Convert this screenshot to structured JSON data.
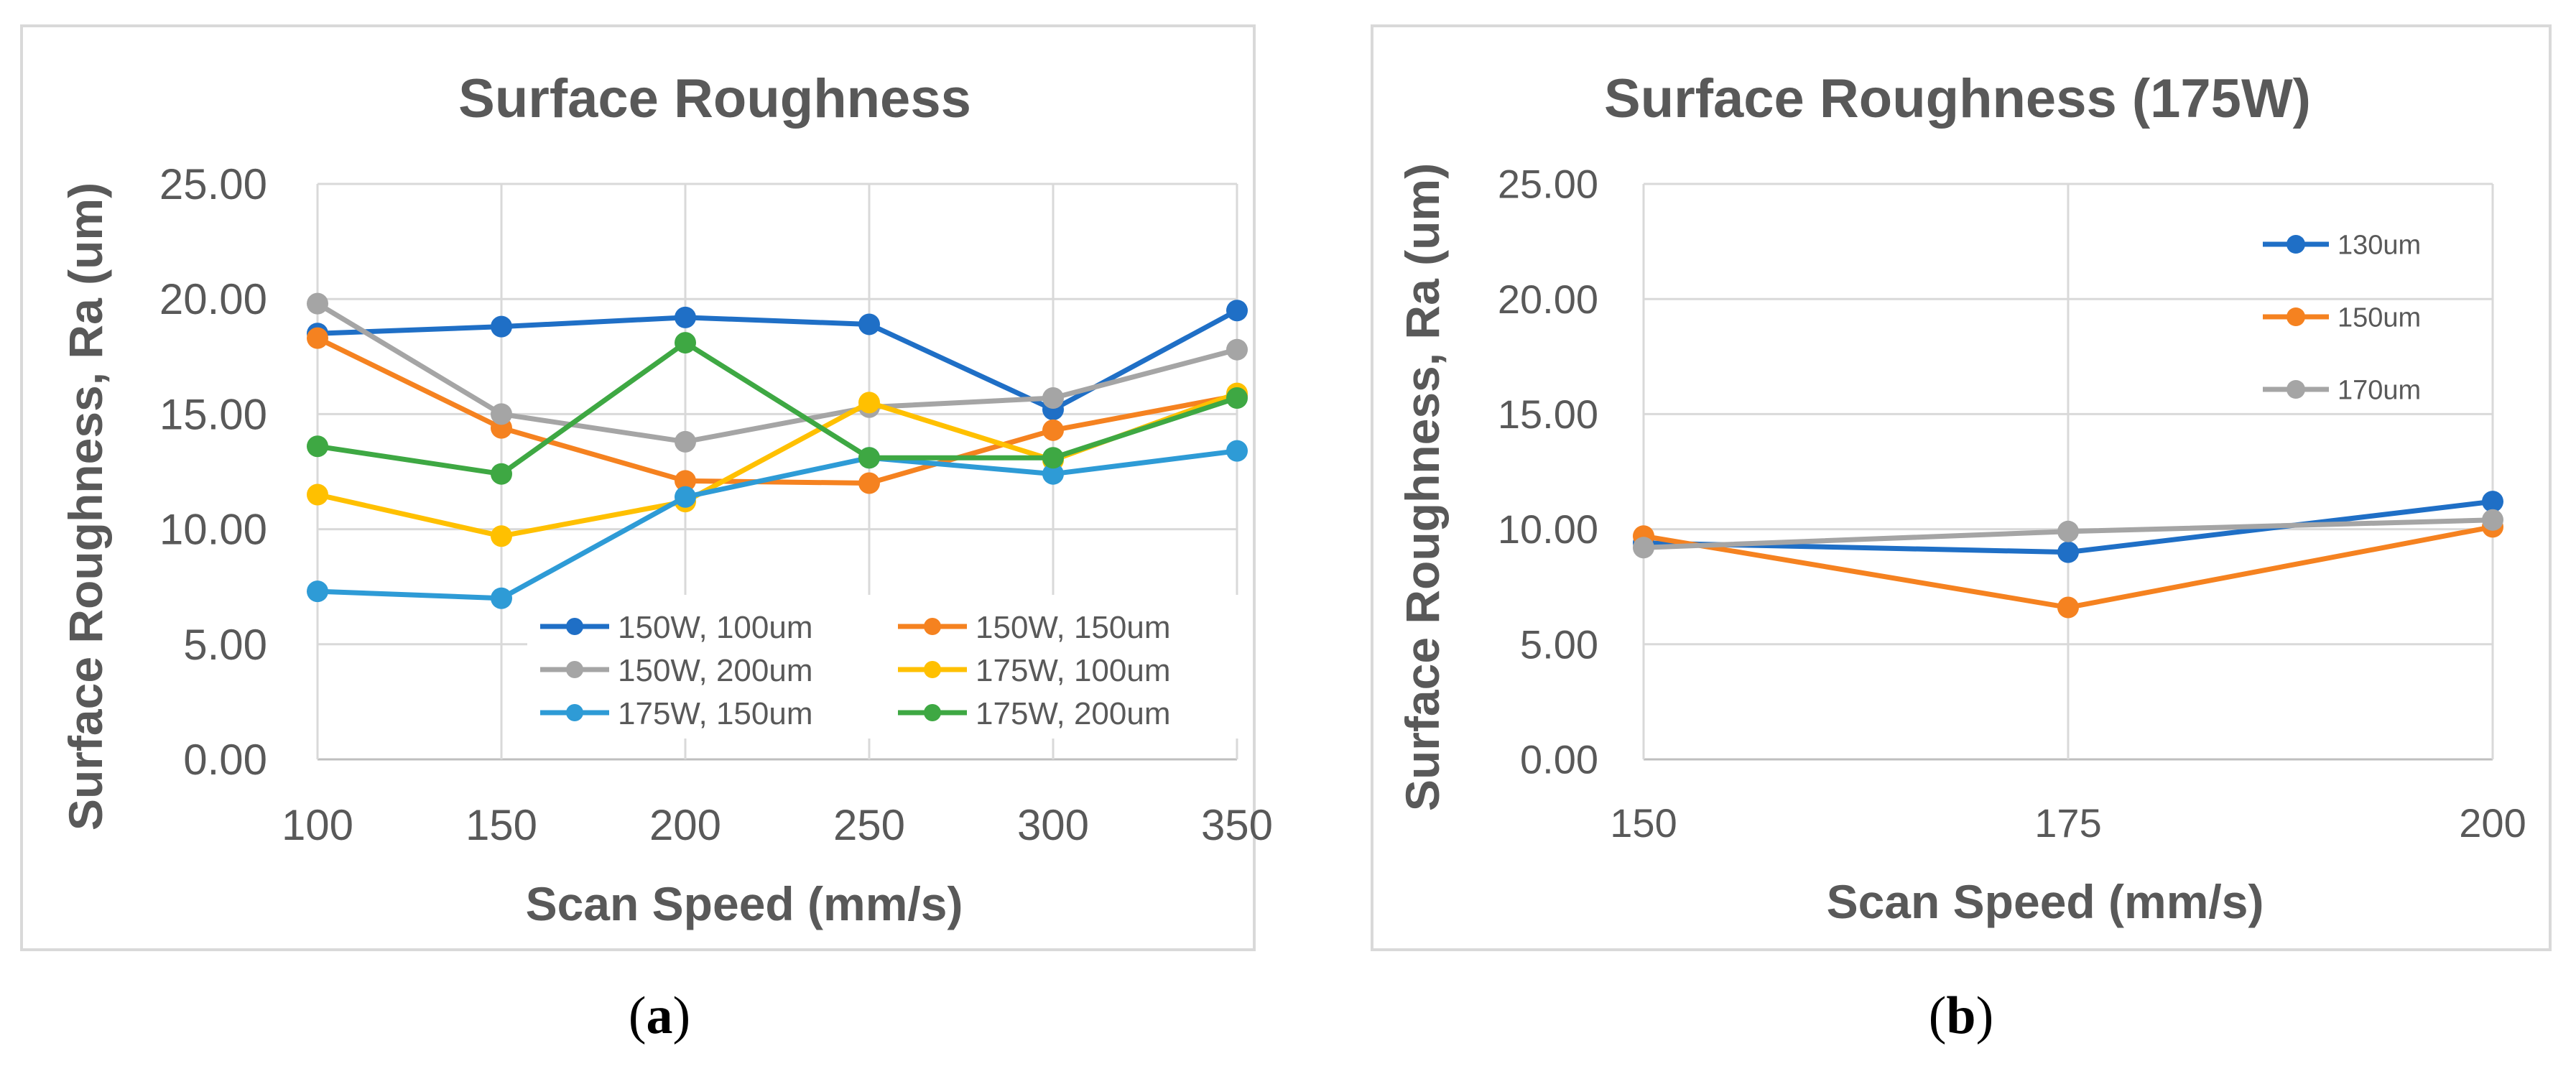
{
  "chart_data": [
    {
      "type": "line",
      "title": "Surface Roughness",
      "xlabel": "Scan Speed (mm/s)",
      "ylabel": "Surface Roughness, Ra (um)",
      "x": [
        100,
        150,
        200,
        250,
        300,
        350
      ],
      "xlim": [
        100,
        350
      ],
      "ylim": [
        0,
        25
      ],
      "yticks": [
        "0.00",
        "5.00",
        "10.00",
        "15.00",
        "20.00",
        "25.00"
      ],
      "xticks": [
        "100",
        "150",
        "200",
        "250",
        "300",
        "350"
      ],
      "grid": true,
      "legend_position": "bottom-right, inside plot",
      "series": [
        {
          "name": "150W, 100um",
          "color": "#1F6FC6",
          "values": [
            18.5,
            18.8,
            19.2,
            18.9,
            15.2,
            19.5
          ]
        },
        {
          "name": "150W, 150um",
          "color": "#F58220",
          "values": [
            18.3,
            14.4,
            12.1,
            12.0,
            14.3,
            15.8
          ]
        },
        {
          "name": "150W, 200um",
          "color": "#A5A5A5",
          "values": [
            19.8,
            15.0,
            13.8,
            15.3,
            15.7,
            17.8
          ]
        },
        {
          "name": "175W, 100um",
          "color": "#FFC000",
          "values": [
            11.5,
            9.7,
            11.2,
            15.5,
            13.0,
            15.9
          ]
        },
        {
          "name": "175W, 150um",
          "color": "#2E9BD6",
          "values": [
            7.3,
            7.0,
            11.4,
            13.1,
            12.4,
            13.4
          ]
        },
        {
          "name": "175W, 200um",
          "color": "#3EA843",
          "values": [
            13.6,
            12.4,
            18.1,
            13.1,
            13.1,
            15.7
          ]
        }
      ]
    },
    {
      "type": "line",
      "title": "Surface Roughness (175W)",
      "xlabel": "Scan Speed (mm/s)",
      "ylabel": "Surface Roughness, Ra (um)",
      "x": [
        150,
        175,
        200
      ],
      "xlim": [
        150,
        200
      ],
      "ylim": [
        0,
        25
      ],
      "yticks": [
        "0.00",
        "5.00",
        "10.00",
        "15.00",
        "20.00",
        "25.00"
      ],
      "xticks": [
        "150",
        "175",
        "200"
      ],
      "grid": true,
      "legend_position": "top-right, inside plot",
      "series": [
        {
          "name": "130um",
          "color": "#1F6FC6",
          "values": [
            9.4,
            9.0,
            11.2
          ]
        },
        {
          "name": "150um",
          "color": "#F58220",
          "values": [
            9.7,
            6.6,
            10.1
          ]
        },
        {
          "name": "170um",
          "color": "#A5A5A5",
          "values": [
            9.2,
            9.9,
            10.4
          ]
        }
      ]
    }
  ],
  "panel_labels": {
    "a": {
      "open": "(",
      "letter": "a",
      "close": ")"
    },
    "b": {
      "open": "(",
      "letter": "b",
      "close": ")"
    }
  }
}
